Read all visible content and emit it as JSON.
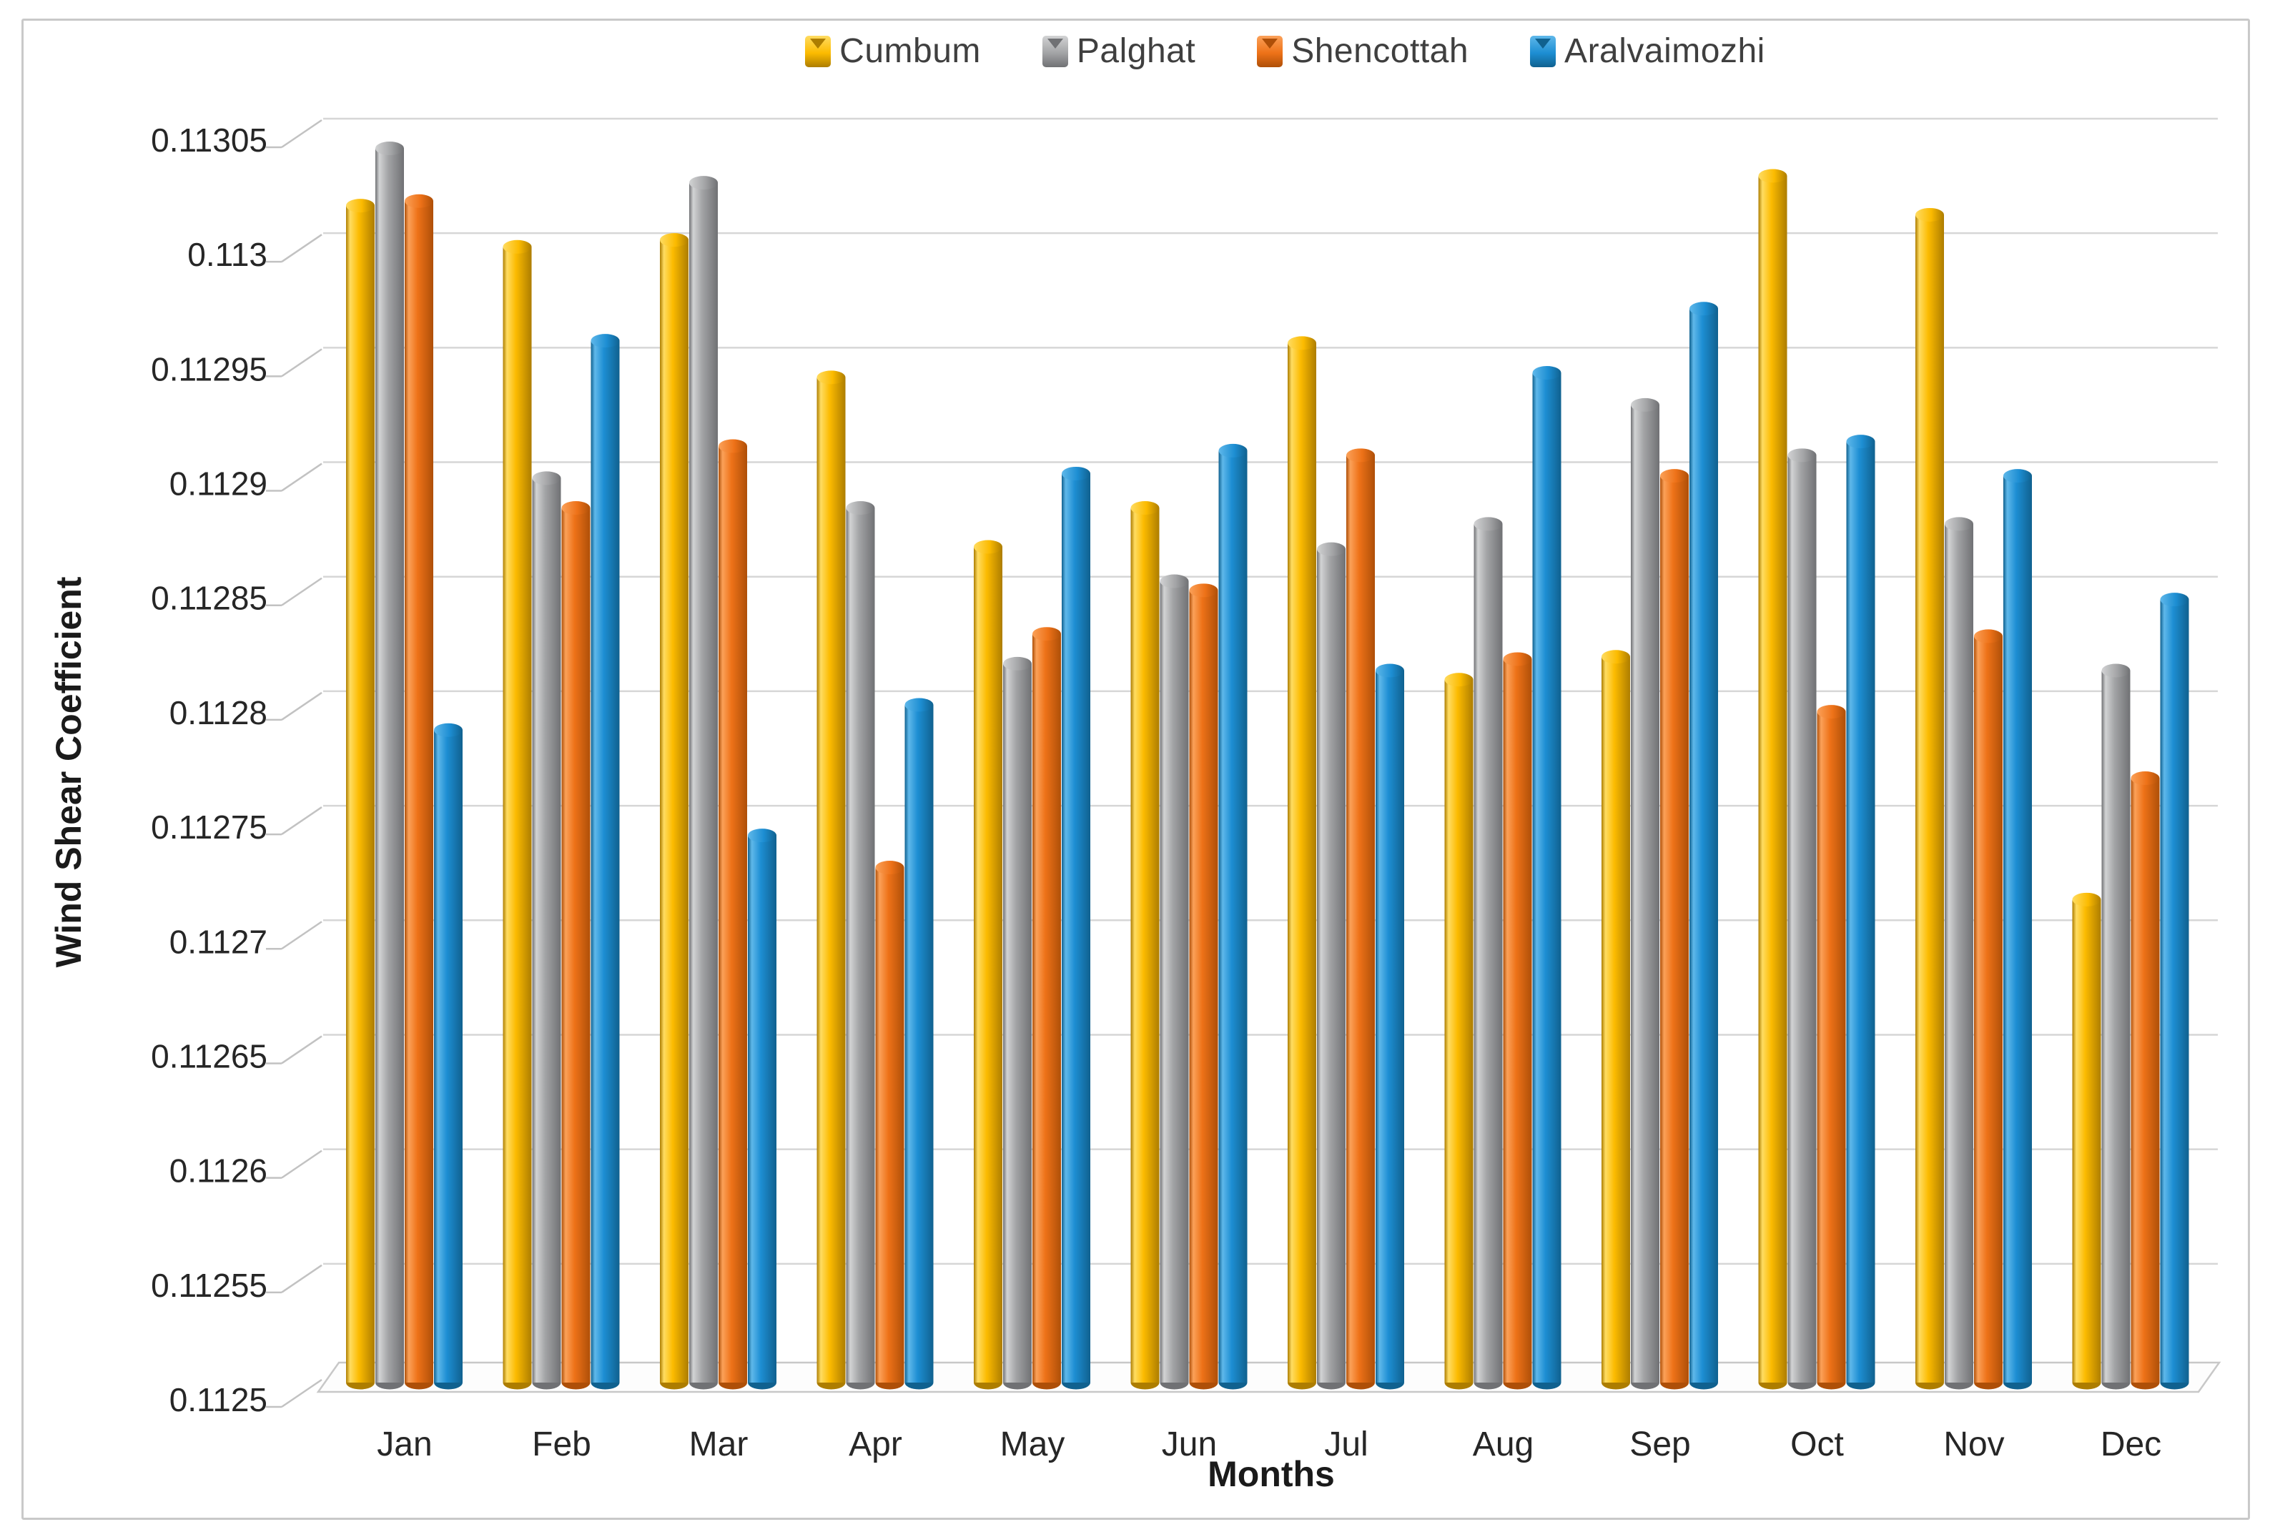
{
  "chart_data": {
    "type": "bar",
    "title": "",
    "categories": [
      "Jan",
      "Feb",
      "Mar",
      "Apr",
      "May",
      "Jun",
      "Jul",
      "Aug",
      "Sep",
      "Oct",
      "Nov",
      "Dec"
    ],
    "series": [
      {
        "name": "Cumbum",
        "color": "#FCBB00",
        "color_light": "#FFDC62",
        "color_dark": "#AD7D00",
        "values": [
          0.113015,
          0.112997,
          0.113,
          0.11294,
          0.112866,
          0.112883,
          0.112955,
          0.112808,
          0.112818,
          0.113028,
          0.113011,
          0.112712
        ]
      },
      {
        "name": "Palghat",
        "color": "#A3A4A6",
        "color_light": "#D2D3D4",
        "color_dark": "#707174",
        "values": [
          0.11304,
          0.112896,
          0.113025,
          0.112883,
          0.112815,
          0.112851,
          0.112865,
          0.112876,
          0.112928,
          0.112906,
          0.112876,
          0.112812
        ]
      },
      {
        "name": "Shencottah",
        "color": "#EE7218",
        "color_light": "#FBA159",
        "color_dark": "#AE4F08",
        "values": [
          0.113017,
          0.112883,
          0.11291,
          0.112726,
          0.112828,
          0.112847,
          0.112906,
          0.112817,
          0.112897,
          0.112794,
          0.112827,
          0.112765
        ]
      },
      {
        "name": "Aralvaimozhi",
        "color": "#1D8ED3",
        "color_light": "#5FB8EA",
        "color_dark": "#10618F",
        "values": [
          0.112786,
          0.112956,
          0.11274,
          0.112797,
          0.112898,
          0.112908,
          0.112812,
          0.112942,
          0.11297,
          0.112912,
          0.112897,
          0.112843
        ]
      }
    ],
    "xlabel": "Months",
    "ylabel": "Wind Shear Coefficient",
    "ylim": [
      0.1125,
      0.11305
    ],
    "ytick_step": 5e-05,
    "ytick_labels": [
      "0.1125",
      "0.11255",
      "0.1126",
      "0.11265",
      "0.1127",
      "0.11275",
      "0.1128",
      "0.11285",
      "0.1129",
      "0.11295",
      "0.113",
      "0.11305"
    ],
    "legend_position": "top",
    "grid": true,
    "grid_color": "#d6d6d6",
    "text_color": "#262626"
  }
}
